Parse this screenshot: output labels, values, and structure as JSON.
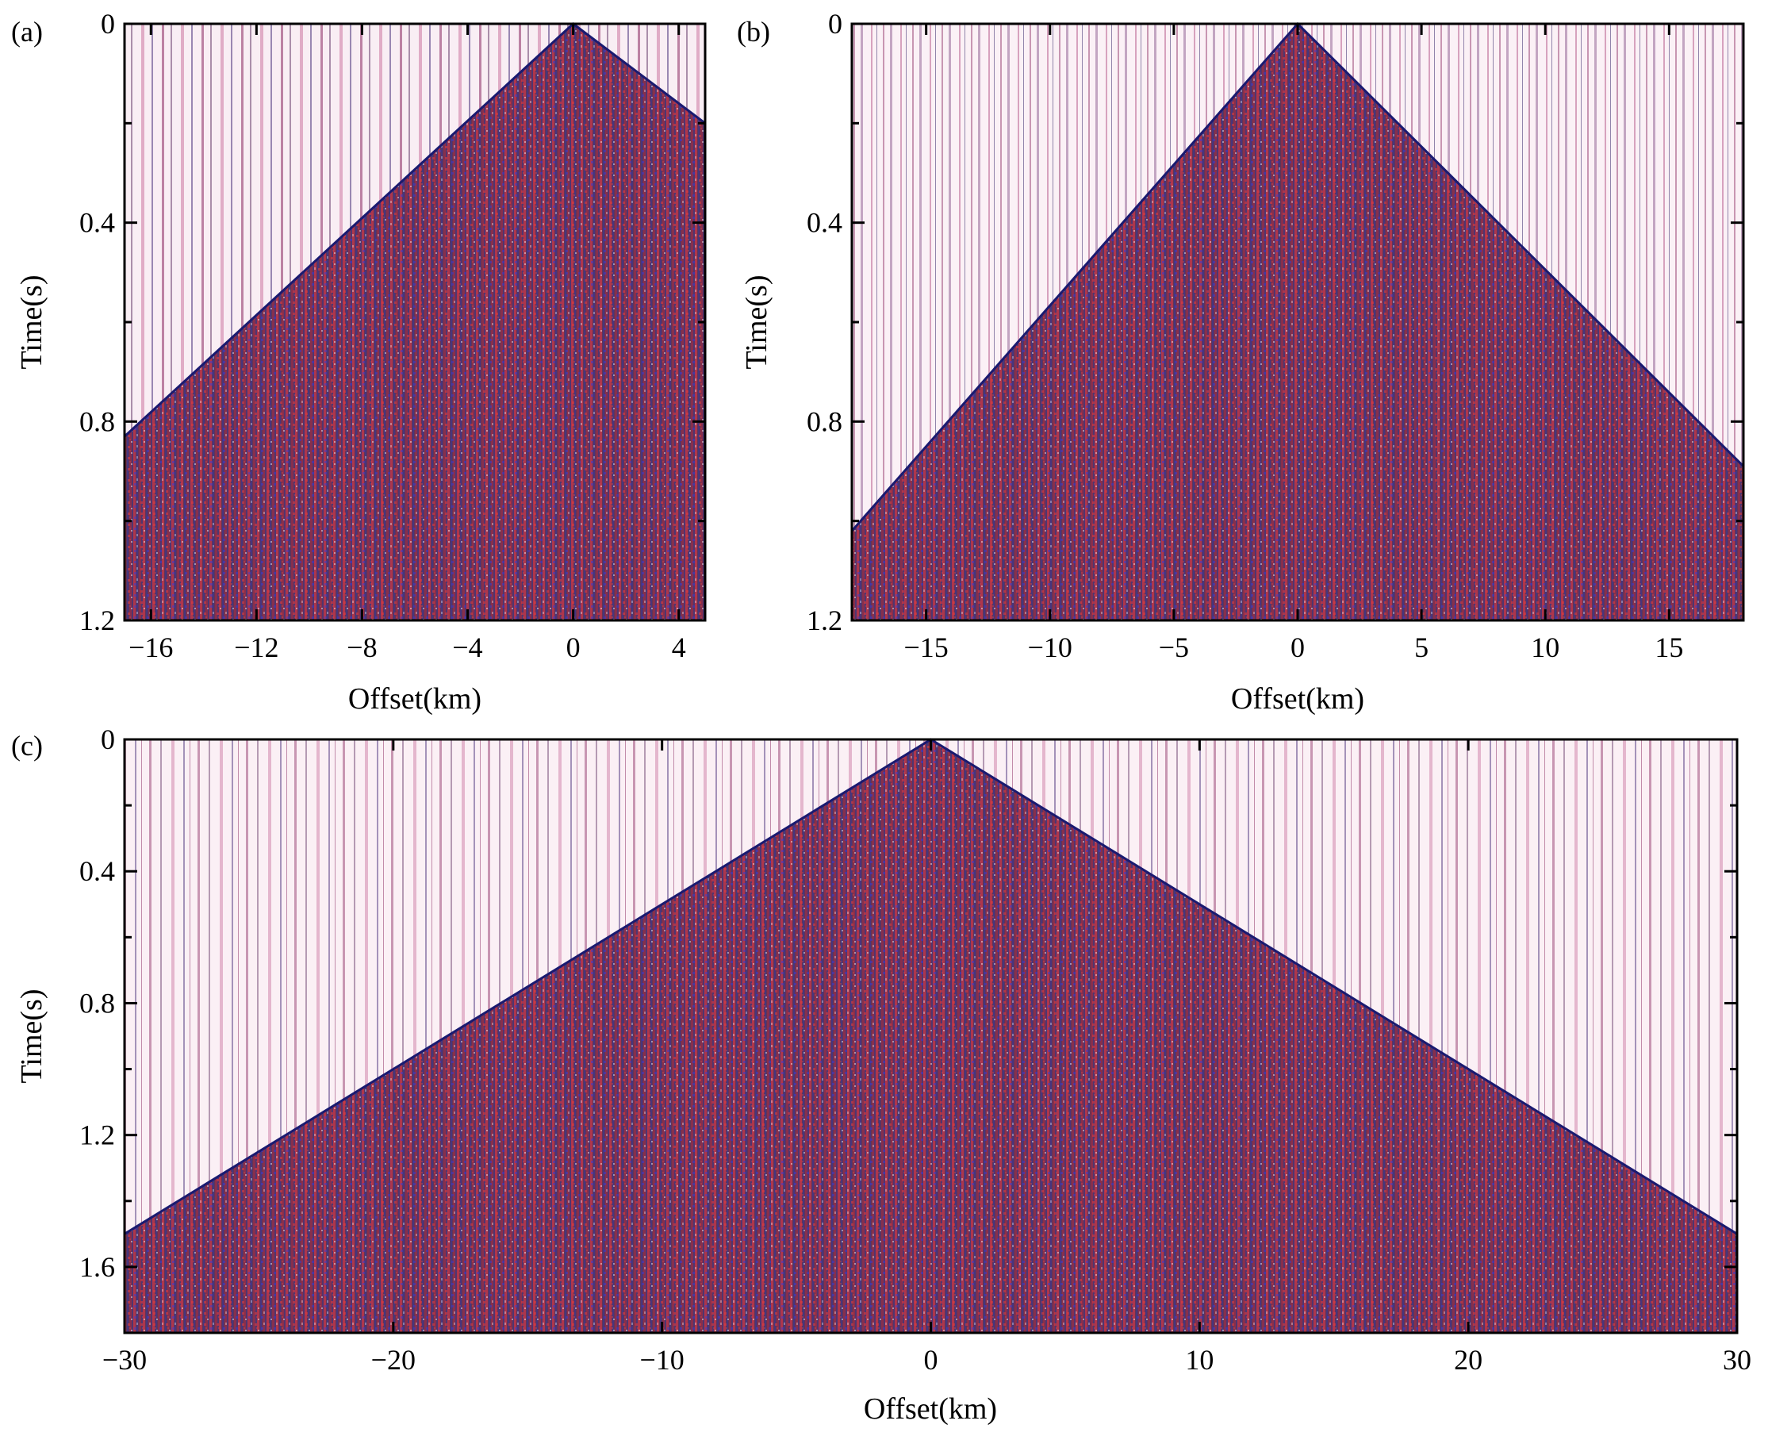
{
  "chart_data": [
    {
      "type": "heatmap",
      "panel_label": "(a)",
      "xlabel": "Offset(km)",
      "ylabel": "Time(s)",
      "xlim": [
        -17,
        5
      ],
      "ylim": [
        1.2,
        0
      ],
      "xticks": [
        -16,
        -12,
        -8,
        -4,
        0,
        4
      ],
      "xtick_labels": [
        "−16",
        "−12",
        "−8",
        "−4",
        "0",
        "4"
      ],
      "yticks": [
        0,
        0.4,
        0.8,
        1.2
      ],
      "ytick_labels": [
        "0",
        "0.4",
        "0.8",
        "1.2"
      ],
      "first_break": {
        "offsets": [
          -17,
          0,
          5
        ],
        "times": [
          0.83,
          0,
          0.2
        ]
      },
      "colormap": [
        "#1a1aff",
        "#ffffff",
        "#e01010"
      ],
      "grid": false
    },
    {
      "type": "heatmap",
      "panel_label": "(b)",
      "xlabel": "Offset(km)",
      "ylabel": "Time(s)",
      "xlim": [
        -18,
        18
      ],
      "ylim": [
        1.2,
        0
      ],
      "xticks": [
        -15,
        -10,
        -5,
        0,
        5,
        10,
        15
      ],
      "xtick_labels": [
        "−15",
        "−10",
        "−5",
        "0",
        "5",
        "10",
        "15"
      ],
      "yticks": [
        0,
        0.4,
        0.8,
        1.2
      ],
      "ytick_labels": [
        "0",
        "0.4",
        "0.8",
        "1.2"
      ],
      "first_break": {
        "offsets": [
          -18,
          0,
          18
        ],
        "times": [
          1.02,
          0,
          0.89
        ]
      },
      "colormap": [
        "#1a1aff",
        "#ffffff",
        "#e01010"
      ],
      "grid": false
    },
    {
      "type": "heatmap",
      "panel_label": "(c)",
      "xlabel": "Offset(km)",
      "ylabel": "Time(s)",
      "xlim": [
        -30,
        30
      ],
      "ylim": [
        1.8,
        0
      ],
      "xticks": [
        -30,
        -20,
        -10,
        0,
        10,
        20,
        30
      ],
      "xtick_labels": [
        "−30",
        "−20",
        "−10",
        "0",
        "10",
        "20",
        "30"
      ],
      "yticks": [
        0,
        0.4,
        0.8,
        1.2,
        1.6
      ],
      "ytick_labels": [
        "0",
        "0.4",
        "0.8",
        "1.2",
        "1.6"
      ],
      "first_break": {
        "offsets": [
          -30,
          0,
          30
        ],
        "times": [
          1.5,
          0,
          1.5
        ]
      },
      "colormap": [
        "#1a1aff",
        "#ffffff",
        "#e01010"
      ],
      "grid": false
    }
  ]
}
